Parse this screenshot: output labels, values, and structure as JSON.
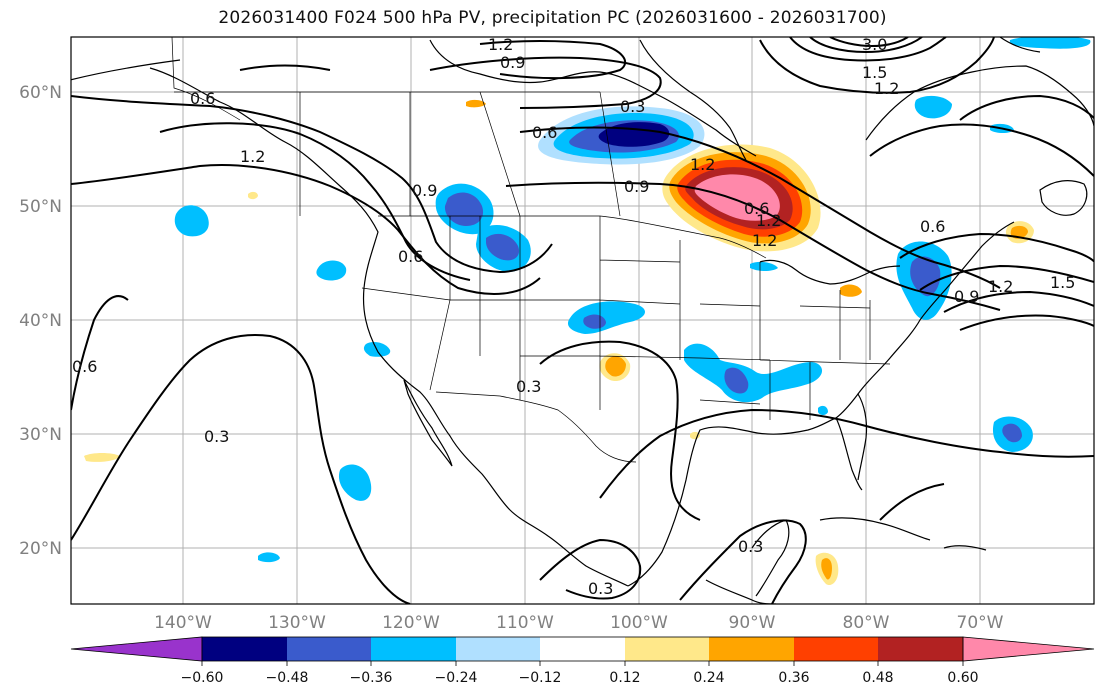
{
  "title": "2026031400 F024 500 hPa PV, precipitation PC (2026031600 - 2026031700)",
  "lat_labels": [
    "60°N",
    "50°N",
    "40°N",
    "30°N",
    "20°N"
  ],
  "lon_labels": [
    "140°W",
    "130°W",
    "120°W",
    "110°W",
    "100°W",
    "90°W",
    "80°W",
    "70°W"
  ],
  "contour_labels": [
    "1.2",
    "0.9",
    "0.6",
    "0.3",
    "1.2",
    "0.6",
    "0.9",
    "0.6",
    "0.9",
    "1.2",
    "0.3",
    "0.6",
    "0.3",
    "0.3",
    "0.3",
    "1.2",
    "0.6",
    "0.9",
    "1.2",
    "1.5",
    "3.0",
    "1.5",
    "1.2",
    "0.6",
    "1.2"
  ],
  "colorbar": {
    "colors": [
      "#9933cc",
      "#000080",
      "#3a5bcc",
      "#00bfff",
      "#b0e0ff",
      "#ffffff",
      "#ffe88a",
      "#ffa500",
      "#ff4000",
      "#b22222",
      "#ff88aa"
    ],
    "tick_labels": [
      "−0.60",
      "−0.48",
      "−0.36",
      "−0.24",
      "−0.12",
      "0.12",
      "0.24",
      "0.36",
      "0.48",
      "0.60"
    ]
  }
}
